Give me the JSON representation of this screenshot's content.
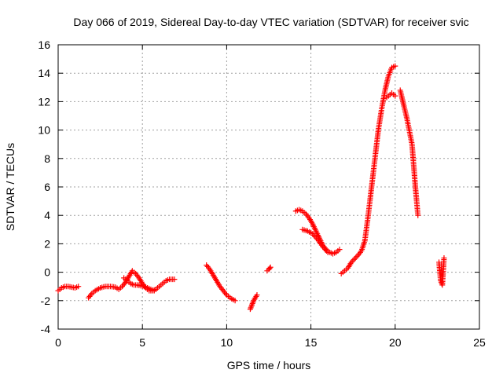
{
  "chart_data": {
    "type": "scatter",
    "title": "Day 066 of 2019, Sidereal Day-to-day VTEC variation (SDTVAR) for receiver svic",
    "xlabel": "GPS time / hours",
    "ylabel": "SDTVAR / TECUs",
    "xlim": [
      0,
      25
    ],
    "ylim": [
      -4,
      16
    ],
    "x_ticks": [
      0,
      5,
      10,
      15,
      20,
      25
    ],
    "y_ticks": [
      -4,
      -2,
      0,
      2,
      4,
      6,
      8,
      10,
      12,
      14,
      16
    ],
    "grid": true,
    "marker": "+",
    "color": "#ff0000",
    "series": [
      {
        "name": "SDTVAR",
        "segments": [
          {
            "x": [
              0.0,
              0.2,
              0.4,
              0.6,
              0.8,
              1.0,
              1.2
            ],
            "y": [
              -1.3,
              -1.1,
              -1.0,
              -1.0,
              -1.05,
              -1.1,
              -1.0
            ]
          },
          {
            "x": [
              1.8,
              2.0,
              2.2,
              2.5,
              2.8,
              3.1,
              3.4,
              3.6,
              3.8,
              4.0,
              4.2,
              4.4,
              4.6,
              4.8,
              5.0,
              5.2,
              5.4,
              5.6,
              5.8,
              6.0,
              6.2,
              6.4,
              6.6,
              6.9
            ],
            "y": [
              -1.8,
              -1.5,
              -1.3,
              -1.1,
              -1.0,
              -1.0,
              -1.05,
              -1.2,
              -1.0,
              -0.7,
              -0.3,
              0.1,
              -0.1,
              -0.4,
              -0.8,
              -1.1,
              -1.3,
              -1.3,
              -1.2,
              -1.0,
              -0.8,
              -0.6,
              -0.5,
              -0.5
            ]
          },
          {
            "x": [
              3.9,
              4.1,
              4.3,
              4.5,
              4.7,
              4.9,
              5.1,
              5.3,
              5.5,
              5.7
            ],
            "y": [
              -0.4,
              -0.6,
              -0.8,
              -0.9,
              -0.9,
              -0.95,
              -1.0,
              -1.1,
              -1.2,
              -1.3
            ]
          },
          {
            "x": [
              8.8,
              9.0,
              9.2,
              9.4,
              9.6,
              9.8,
              10.0,
              10.2,
              10.5
            ],
            "y": [
              0.5,
              0.2,
              -0.2,
              -0.6,
              -1.0,
              -1.3,
              -1.6,
              -1.8,
              -2.0
            ]
          },
          {
            "x": [
              11.4,
              11.5,
              11.6,
              11.7,
              11.8
            ],
            "y": [
              -2.6,
              -2.3,
              -2.0,
              -1.8,
              -1.6
            ]
          },
          {
            "x": [
              12.4,
              12.5,
              12.6
            ],
            "y": [
              0.1,
              0.2,
              0.35
            ]
          },
          {
            "x": [
              14.1,
              14.3,
              14.5,
              14.7,
              14.9,
              15.1,
              15.3,
              15.5,
              15.7,
              15.9,
              16.1,
              16.3,
              16.5,
              16.7
            ],
            "y": [
              4.3,
              4.4,
              4.3,
              4.1,
              3.8,
              3.4,
              2.9,
              2.4,
              1.9,
              1.6,
              1.4,
              1.3,
              1.4,
              1.6
            ]
          },
          {
            "x": [
              14.5,
              14.8,
              15.1,
              15.4,
              15.7,
              16.0
            ],
            "y": [
              3.0,
              2.9,
              2.7,
              2.3,
              1.8,
              1.4
            ]
          },
          {
            "x": [
              16.8,
              17.0,
              17.2,
              17.4,
              17.8,
              18.0,
              18.2,
              18.4,
              18.6,
              18.8,
              19.0,
              19.2,
              19.4,
              19.6,
              19.8,
              20.0
            ],
            "y": [
              -0.1,
              0.1,
              0.3,
              0.7,
              1.2,
              1.5,
              2.2,
              4.0,
              6.0,
              8.0,
              10.0,
              11.5,
              12.8,
              13.8,
              14.4,
              14.5
            ]
          },
          {
            "x": [
              19.5,
              19.8,
              20.0
            ],
            "y": [
              12.3,
              12.6,
              12.4
            ]
          },
          {
            "x": [
              20.3,
              20.5,
              20.7,
              20.8,
              21.0,
              21.1,
              21.2,
              21.35
            ],
            "y": [
              12.8,
              11.8,
              10.8,
              10.2,
              9.0,
              7.5,
              6.0,
              4.0
            ]
          },
          {
            "x": [
              22.6,
              22.7,
              22.8,
              22.9
            ],
            "y": [
              0.7,
              -0.6,
              -0.9,
              1.0
            ]
          }
        ]
      }
    ]
  }
}
